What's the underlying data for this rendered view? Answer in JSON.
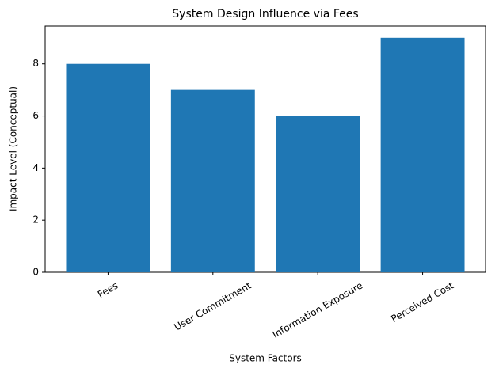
{
  "chart_data": {
    "type": "bar",
    "title": "System Design Influence via Fees",
    "x_label": "System Factors",
    "y_label": "Impact Level (Conceptual)",
    "categories": [
      "Fees",
      "User Commitment",
      "Information Exposure",
      "Perceived Cost"
    ],
    "values": [
      8,
      7,
      6,
      9
    ],
    "color": "#1f77b4",
    "ylim": [
      0,
      9.45
    ],
    "yticks": [
      0,
      2,
      4,
      6,
      8
    ],
    "grid": false
  }
}
